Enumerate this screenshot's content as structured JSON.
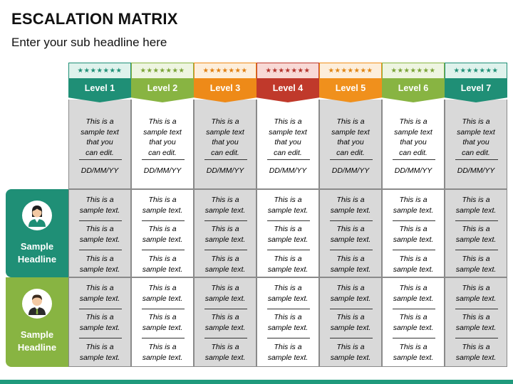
{
  "header": {
    "title": "ESCALATION MATRIX",
    "subtitle": "Enter your sub headline here"
  },
  "levels": [
    {
      "label": "Level 1",
      "stars": "★★★★★★★",
      "color": "#1f8f76",
      "star_bg": "#dff2ec",
      "star_color": "#1f8f76",
      "shade": true,
      "desc": "This is a\nsample text\nthat you\ncan edit.",
      "date": "DD/MM/YY"
    },
    {
      "label": "Level 2",
      "stars": "★★★★★★★",
      "color": "#88b442",
      "star_bg": "#eef5e1",
      "star_color": "#7aa337",
      "shade": false,
      "desc": "This is a\nsample text\nthat you\ncan edit.",
      "date": "DD/MM/YY"
    },
    {
      "label": "Level 3",
      "stars": "★★★★★★★",
      "color": "#ee8a18",
      "star_bg": "#fdeedb",
      "star_color": "#e07f10",
      "shade": true,
      "desc": "This is a\nsample text\nthat you\ncan edit.",
      "date": "DD/MM/YY"
    },
    {
      "label": "Level 4",
      "stars": "★★★★★★★",
      "color": "#c0392b",
      "star_bg": "#f8d9d6",
      "star_color": "#b3312a",
      "shade": false,
      "desc": "This is a\nsample text\nthat you\ncan edit.",
      "date": "DD/MM/YY"
    },
    {
      "label": "Level 5",
      "stars": "★★★★★★★",
      "color": "#f0901c",
      "star_bg": "#fdeedb",
      "star_color": "#e08512",
      "shade": true,
      "desc": "This is a\nsample text\nthat you\ncan edit.",
      "date": "DD/MM/YY"
    },
    {
      "label": "Level 6",
      "stars": "★★★★★★★",
      "color": "#88b442",
      "star_bg": "#eef5e1",
      "star_color": "#7aa337",
      "shade": false,
      "desc": "This is a\nsample text\nthat you\ncan edit.",
      "date": "DD/MM/YY"
    },
    {
      "label": "Level 7",
      "stars": "★★★★★★★",
      "color": "#1f8f76",
      "star_bg": "#dff2ec",
      "star_color": "#1f8f76",
      "shade": true,
      "desc": "This is a\nsample text\nthat you\ncan edit.",
      "date": "DD/MM/YY"
    }
  ],
  "rows": [
    {
      "label": "Sample\nHeadline",
      "avatar": "woman-avatar-icon",
      "color": "#1f8f76",
      "entries": [
        "This is a\nsample text.",
        "This is a\nsample text.",
        "This is a\nsample text."
      ]
    },
    {
      "label": "Sample\nHeadline",
      "avatar": "man-avatar-icon",
      "color": "#88b442",
      "entries": [
        "This is a\nsample text.",
        "This is a\nsample text.",
        "This is a\nsample text."
      ]
    }
  ],
  "footer": {
    "bar_color": "#1f9a7c"
  }
}
